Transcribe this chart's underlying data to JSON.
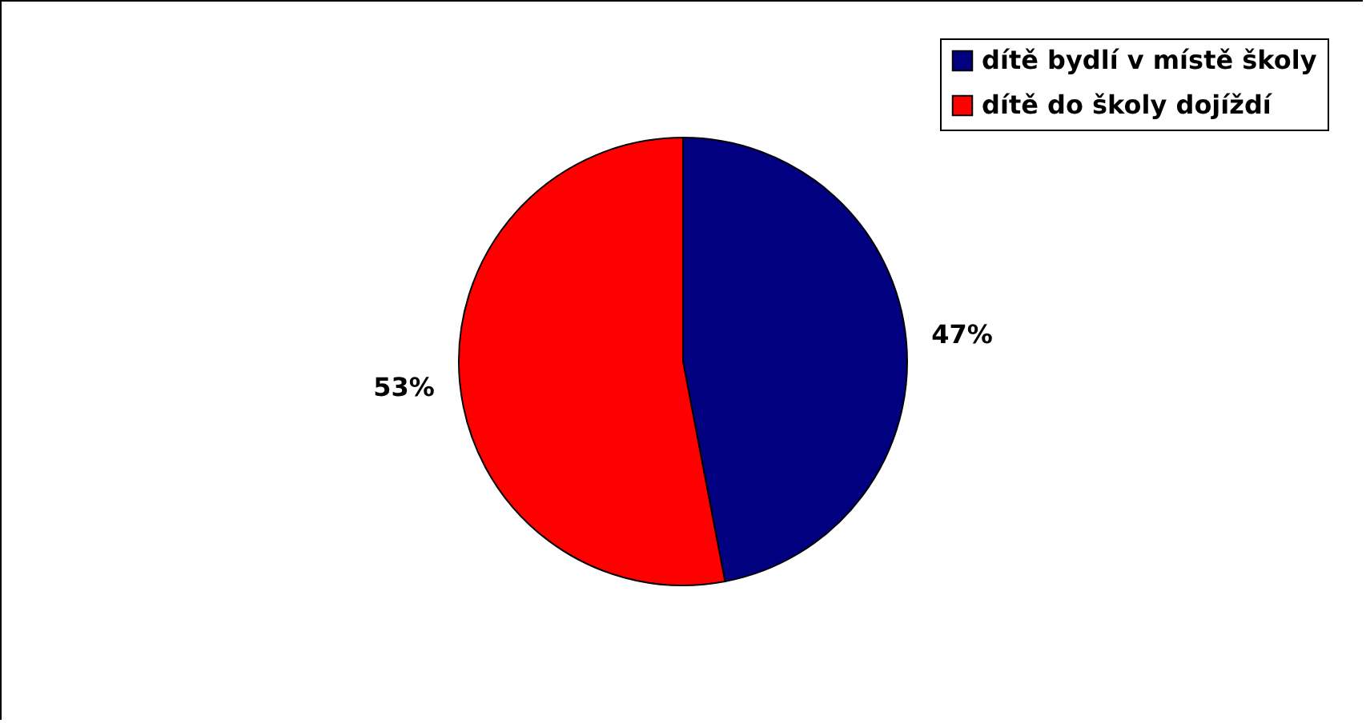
{
  "chart_data": {
    "type": "pie",
    "categories": [
      "dítě bydlí v místě školy",
      "dítě do školy dojíždí"
    ],
    "values": [
      47,
      53
    ],
    "colors": [
      "#000080",
      "#ff0000"
    ],
    "value_labels": [
      "47%",
      "53%"
    ],
    "legend": "top right"
  }
}
